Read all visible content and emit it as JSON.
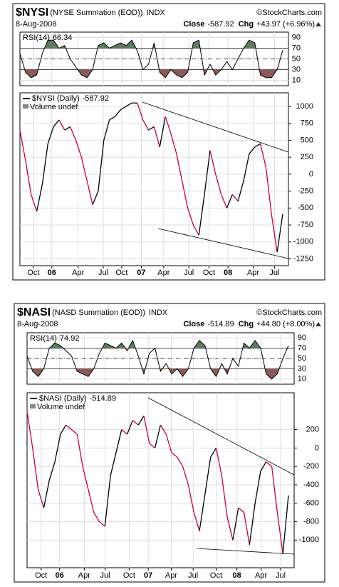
{
  "chart_data": [
    {
      "type": "line",
      "symbol": "$NYSI",
      "description": "(NYSE Summation (EOD))",
      "exchange": "INDX",
      "source": "©StockCharts.com",
      "date": "8-Aug-2008",
      "close_label": "Close",
      "close": -587.92,
      "chg_label": "Chg",
      "chg": "+43.97 (+6.96%)",
      "indicator": {
        "name": "RSI(14)",
        "ylim": [
          0,
          100
        ],
        "yticks": [
          10,
          30,
          50,
          70,
          90
        ],
        "overbought": 70,
        "oversold": 30,
        "midline": 50,
        "overbought_color": "#5f7a5f",
        "oversold_color": "#8a5a5a",
        "values": [
          60,
          25,
          15,
          20,
          60,
          85,
          85,
          70,
          75,
          50,
          35,
          20,
          15,
          30,
          75,
          80,
          70,
          75,
          80,
          75,
          85,
          65,
          30,
          40,
          80,
          25,
          15,
          30,
          20,
          15,
          25,
          80,
          85,
          20,
          40,
          20,
          30,
          45,
          30,
          50,
          70,
          85,
          80,
          20,
          15,
          15,
          30,
          66.34
        ]
      },
      "series": [
        {
          "name": "$NYSI (Daily)",
          "up_color": "#000000",
          "down_color": "#cc0033",
          "values": [
            650,
            200,
            -300,
            -550,
            -150,
            450,
            700,
            800,
            650,
            700,
            500,
            250,
            -100,
            -450,
            -250,
            500,
            800,
            850,
            950,
            1000,
            1050,
            1050,
            800,
            650,
            700,
            400,
            850,
            600,
            300,
            -100,
            -500,
            -750,
            -900,
            -300,
            350,
            0,
            -300,
            -500,
            -300,
            -400,
            -100,
            300,
            400,
            450,
            100,
            -600,
            -1150,
            -587.92
          ]
        }
      ],
      "volume_label": "Volume undef",
      "xlim": [
        0,
        48
      ],
      "xticks": [
        {
          "value": 2.4,
          "label": "Oct"
        },
        {
          "value": 5.7,
          "label": "06"
        },
        {
          "value": 10.4,
          "label": "Apr"
        },
        {
          "value": 14.9,
          "label": "Jul"
        },
        {
          "value": 18.2,
          "label": "Oct"
        },
        {
          "value": 21.7,
          "label": "07"
        },
        {
          "value": 25.7,
          "label": "Apr"
        },
        {
          "value": 30.2,
          "label": "Jul"
        },
        {
          "value": 33.8,
          "label": "Oct"
        },
        {
          "value": 37.2,
          "label": "08"
        },
        {
          "value": 41.7,
          "label": "Apr"
        },
        {
          "value": 45.5,
          "label": "Jul"
        }
      ],
      "ylim": [
        -1350,
        1200
      ],
      "yticks": [
        1000,
        750,
        500,
        250,
        0,
        -250,
        -500,
        -750,
        -1000,
        -1250
      ],
      "grid": true
    },
    {
      "type": "line",
      "symbol": "$NASI",
      "description": "(NASD Summation (EOD))",
      "exchange": "INDX",
      "source": "©StockCharts.com",
      "date": "8-Aug-2008",
      "close_label": "Close",
      "close": -514.89,
      "chg_label": "Chg",
      "chg": "+44.80 (+8.00%)",
      "indicator": {
        "name": "RSI(14)",
        "ylim": [
          0,
          100
        ],
        "yticks": [
          10,
          30,
          50,
          70,
          90
        ],
        "overbought": 70,
        "oversold": 30,
        "midline": 50,
        "overbought_color": "#5f7a5f",
        "oversold_color": "#8a5a5a",
        "values": [
          55,
          25,
          15,
          30,
          70,
          80,
          75,
          65,
          55,
          25,
          20,
          15,
          30,
          60,
          80,
          75,
          70,
          80,
          65,
          85,
          55,
          20,
          60,
          70,
          25,
          40,
          20,
          30,
          15,
          30,
          70,
          85,
          75,
          30,
          15,
          40,
          20,
          50,
          35,
          80,
          70,
          85,
          70,
          20,
          10,
          20,
          50,
          74.92
        ]
      },
      "series": [
        {
          "name": "$NASI (Daily)",
          "up_color": "#000000",
          "down_color": "#cc0033",
          "values": [
            400,
            0,
            -450,
            -650,
            -350,
            -150,
            150,
            250,
            200,
            150,
            -200,
            -450,
            -700,
            -800,
            -850,
            -300,
            -50,
            200,
            150,
            300,
            250,
            350,
            50,
            0,
            250,
            150,
            -50,
            -100,
            -200,
            -400,
            -700,
            -900,
            -500,
            -100,
            0,
            -300,
            -750,
            -1000,
            -650,
            -700,
            -1050,
            -600,
            -250,
            -150,
            -200,
            -700,
            -1150,
            -514.89
          ]
        }
      ],
      "volume_label": "Volume undef",
      "xlim": [
        0,
        47.6
      ],
      "xticks": [
        {
          "value": 2.5,
          "label": "Oct"
        },
        {
          "value": 5.8,
          "label": "06"
        },
        {
          "value": 10.2,
          "label": "Apr"
        },
        {
          "value": 13.9,
          "label": "Jul"
        },
        {
          "value": 18.2,
          "label": "Oct"
        },
        {
          "value": 21.6,
          "label": "07"
        },
        {
          "value": 25.7,
          "label": "Apr"
        },
        {
          "value": 29.6,
          "label": "Jul"
        },
        {
          "value": 33.7,
          "label": "Oct"
        },
        {
          "value": 37.4,
          "label": "08"
        },
        {
          "value": 41.7,
          "label": "Apr"
        },
        {
          "value": 45.2,
          "label": "Jul"
        }
      ],
      "ylim": [
        -1300,
        600
      ],
      "yticks": [
        200,
        0,
        -200,
        -400,
        -600,
        -800,
        -1000
      ],
      "grid": true
    }
  ]
}
